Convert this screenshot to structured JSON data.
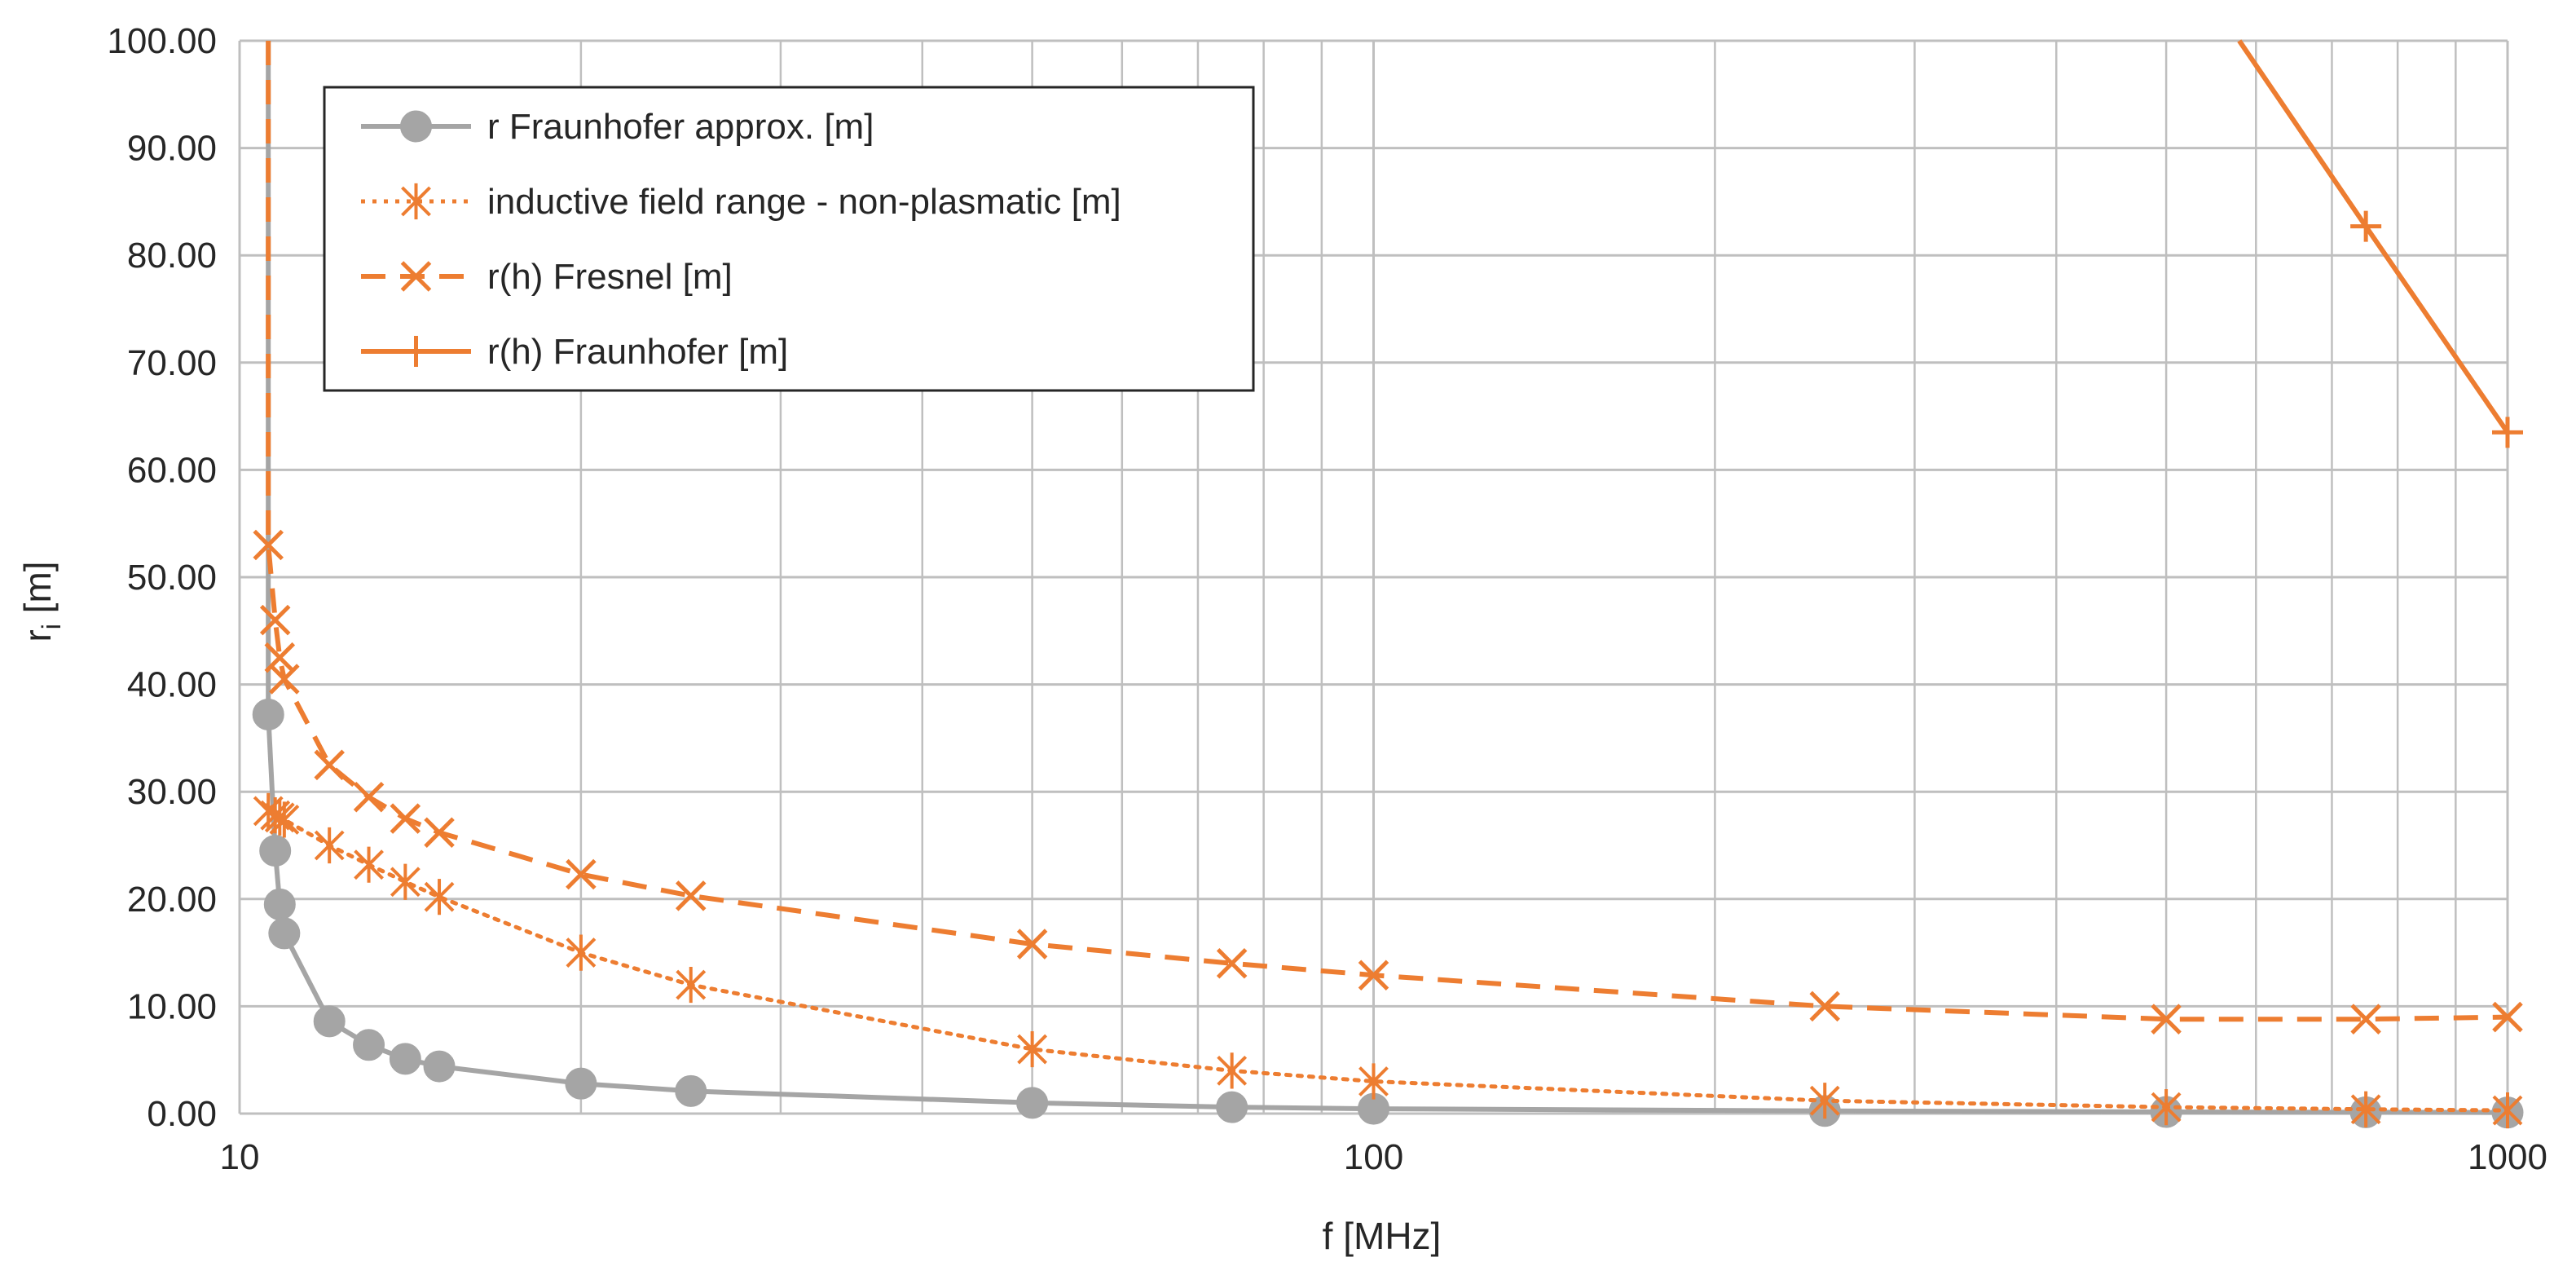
{
  "chart_data": {
    "type": "line",
    "title": "",
    "xlabel": "f [MHz]",
    "ylabel": "r",
    "ylabel_sub": "i",
    "ylabel_suffix": " [m]",
    "x_scale": "log",
    "xlim": [
      10,
      1000
    ],
    "ylim": [
      0,
      100
    ],
    "x_ticks": [
      10,
      100,
      1000
    ],
    "x_tick_labels": [
      "10",
      "100",
      "1000"
    ],
    "y_ticks": [
      0,
      10,
      20,
      30,
      40,
      50,
      60,
      70,
      80,
      90,
      100
    ],
    "y_tick_labels": [
      "0.00",
      "10.00",
      "20.00",
      "30.00",
      "40.00",
      "50.00",
      "60.00",
      "70.00",
      "80.00",
      "90.00",
      "100.00"
    ],
    "grid": true,
    "legend_position": "top-left",
    "series": [
      {
        "name": "r Fraunhofer approx. [m]",
        "color": "#a5a5a5",
        "line": "solid",
        "marker": "circle",
        "x": [
          10.6,
          10.6,
          10.75,
          10.85,
          10.95,
          12.0,
          13.0,
          14.0,
          15.0,
          20.0,
          25.0,
          50.0,
          75.0,
          100.0,
          250.0,
          500.0,
          750.0,
          1000.0
        ],
        "y": [
          100,
          37.2,
          24.5,
          19.5,
          16.8,
          8.6,
          6.4,
          5.1,
          4.4,
          2.8,
          2.1,
          1.0,
          0.6,
          0.45,
          0.25,
          0.15,
          0.12,
          0.1
        ]
      },
      {
        "name": "inductive field range - non-plasmatic [m]",
        "color": "#ed7d31",
        "line": "dotted",
        "marker": "asterisk",
        "x": [
          10.6,
          10.75,
          10.85,
          10.95,
          12.0,
          13.0,
          14.0,
          15.0,
          20.0,
          25.0,
          50.0,
          75.0,
          100.0,
          250.0,
          500.0,
          750.0,
          1000.0
        ],
        "y": [
          28.2,
          27.8,
          27.6,
          27.4,
          25.0,
          23.2,
          21.6,
          20.2,
          15.0,
          12.0,
          6.0,
          4.0,
          3.0,
          1.2,
          0.6,
          0.4,
          0.3
        ]
      },
      {
        "name": "r(h) Fresnel [m]",
        "color": "#ed7d31",
        "line": "dashed",
        "marker": "x",
        "x": [
          10.6,
          10.6,
          10.75,
          10.85,
          10.95,
          12.0,
          13.0,
          14.0,
          15.0,
          20.0,
          25.0,
          50.0,
          75.0,
          100.0,
          250.0,
          500.0,
          750.0,
          1000.0
        ],
        "y": [
          100,
          53.0,
          46.0,
          42.5,
          40.5,
          32.5,
          29.5,
          27.5,
          26.2,
          22.3,
          20.3,
          15.8,
          14.0,
          12.9,
          10.0,
          8.8,
          8.8,
          9.0
        ]
      },
      {
        "name": "r(h) Fraunhofer [m]",
        "color": "#ed7d31",
        "line": "solid",
        "marker": "plus",
        "x": [
          580.0,
          750.0,
          1000.0
        ],
        "y": [
          100,
          82.7,
          63.5
        ],
        "x_markers": [
          750.0,
          1000.0
        ],
        "y_markers": [
          82.7,
          63.5
        ]
      }
    ]
  }
}
